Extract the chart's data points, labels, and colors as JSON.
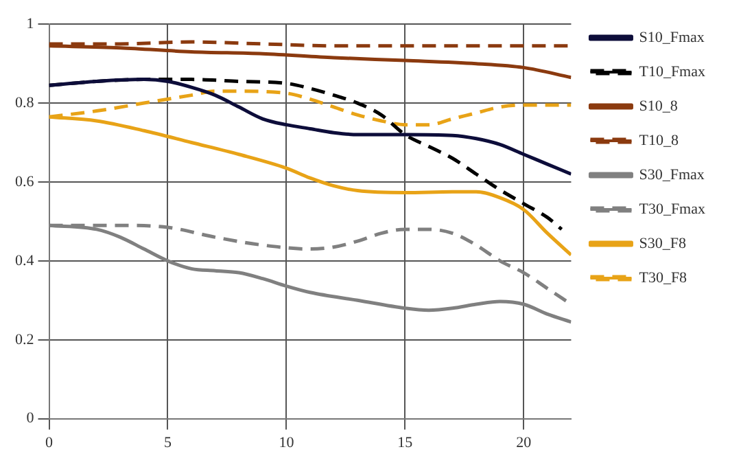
{
  "chart_data": {
    "type": "line",
    "xlim": [
      0,
      22
    ],
    "xticks": [
      0,
      5,
      10,
      15,
      20
    ],
    "ylim": [
      0,
      1
    ],
    "yticks": [
      0,
      0.2,
      0.4,
      0.6,
      0.8,
      1
    ],
    "grid": true,
    "legend": "right",
    "marker": "none",
    "series": [
      {
        "name": "S10_Fmax",
        "color": "#0d0d3a",
        "line_style": "solid",
        "x": [
          0,
          2,
          4,
          5,
          6,
          7,
          8,
          9,
          10,
          11,
          12,
          13,
          15,
          17,
          18,
          19,
          20,
          21,
          22
        ],
        "values": [
          0.845,
          0.855,
          0.86,
          0.855,
          0.84,
          0.82,
          0.79,
          0.76,
          0.745,
          0.735,
          0.725,
          0.72,
          0.72,
          0.718,
          0.71,
          0.695,
          0.67,
          0.645,
          0.62
        ]
      },
      {
        "name": "T10_Fmax",
        "color": "#000000",
        "line_style": "dashed",
        "x": [
          0,
          2,
          4,
          6,
          8,
          10,
          11,
          12,
          13,
          14,
          15,
          16,
          17,
          18,
          19,
          20,
          21,
          21.6
        ],
        "values": [
          0.845,
          0.855,
          0.86,
          0.86,
          0.855,
          0.85,
          0.837,
          0.82,
          0.8,
          0.77,
          0.72,
          0.69,
          0.66,
          0.62,
          0.58,
          0.545,
          0.51,
          0.48
        ]
      },
      {
        "name": "S10_8",
        "color": "#8b3a0f",
        "line_style": "solid",
        "x": [
          0,
          3,
          6,
          9,
          12,
          15,
          18,
          20,
          22
        ],
        "values": [
          0.945,
          0.94,
          0.93,
          0.925,
          0.915,
          0.908,
          0.9,
          0.89,
          0.865
        ]
      },
      {
        "name": "T10_8",
        "color": "#8b3a0f",
        "line_style": "dashed",
        "x": [
          0,
          3,
          6,
          9,
          12,
          15,
          18,
          22
        ],
        "values": [
          0.95,
          0.95,
          0.955,
          0.95,
          0.945,
          0.945,
          0.945,
          0.945
        ]
      },
      {
        "name": "S30_Fmax",
        "color": "#808080",
        "line_style": "solid",
        "x": [
          0,
          2,
          3,
          4,
          5,
          6,
          7,
          8,
          9,
          10,
          11,
          13,
          15,
          16,
          17,
          18,
          19,
          20,
          21,
          22
        ],
        "values": [
          0.49,
          0.48,
          0.46,
          0.43,
          0.4,
          0.38,
          0.375,
          0.37,
          0.355,
          0.336,
          0.32,
          0.3,
          0.28,
          0.275,
          0.28,
          0.29,
          0.297,
          0.29,
          0.265,
          0.245
        ]
      },
      {
        "name": "T30_Fmax",
        "color": "#808080",
        "line_style": "dashed",
        "x": [
          0,
          3,
          5,
          7,
          9,
          11,
          12,
          13,
          14,
          15,
          16,
          17,
          18,
          19,
          20,
          21,
          22
        ],
        "values": [
          0.49,
          0.49,
          0.485,
          0.46,
          0.44,
          0.43,
          0.435,
          0.45,
          0.47,
          0.48,
          0.48,
          0.47,
          0.44,
          0.4,
          0.37,
          0.33,
          0.29
        ]
      },
      {
        "name": "S30_F8",
        "color": "#e8a317",
        "line_style": "solid",
        "x": [
          0,
          2,
          4,
          6,
          8,
          10,
          11,
          12,
          13,
          15,
          17,
          18,
          19,
          20,
          21,
          22
        ],
        "values": [
          0.765,
          0.755,
          0.73,
          0.7,
          0.67,
          0.635,
          0.61,
          0.59,
          0.578,
          0.573,
          0.575,
          0.575,
          0.56,
          0.53,
          0.47,
          0.415
        ]
      },
      {
        "name": "T30_F8",
        "color": "#e8a317",
        "line_style": "dashed",
        "x": [
          0,
          2,
          4,
          6,
          7,
          8,
          10,
          11,
          12,
          13,
          14,
          15,
          16,
          17,
          18,
          19,
          20,
          22
        ],
        "values": [
          0.765,
          0.78,
          0.8,
          0.82,
          0.83,
          0.83,
          0.825,
          0.81,
          0.79,
          0.77,
          0.755,
          0.745,
          0.745,
          0.76,
          0.775,
          0.79,
          0.795,
          0.795
        ]
      }
    ]
  }
}
